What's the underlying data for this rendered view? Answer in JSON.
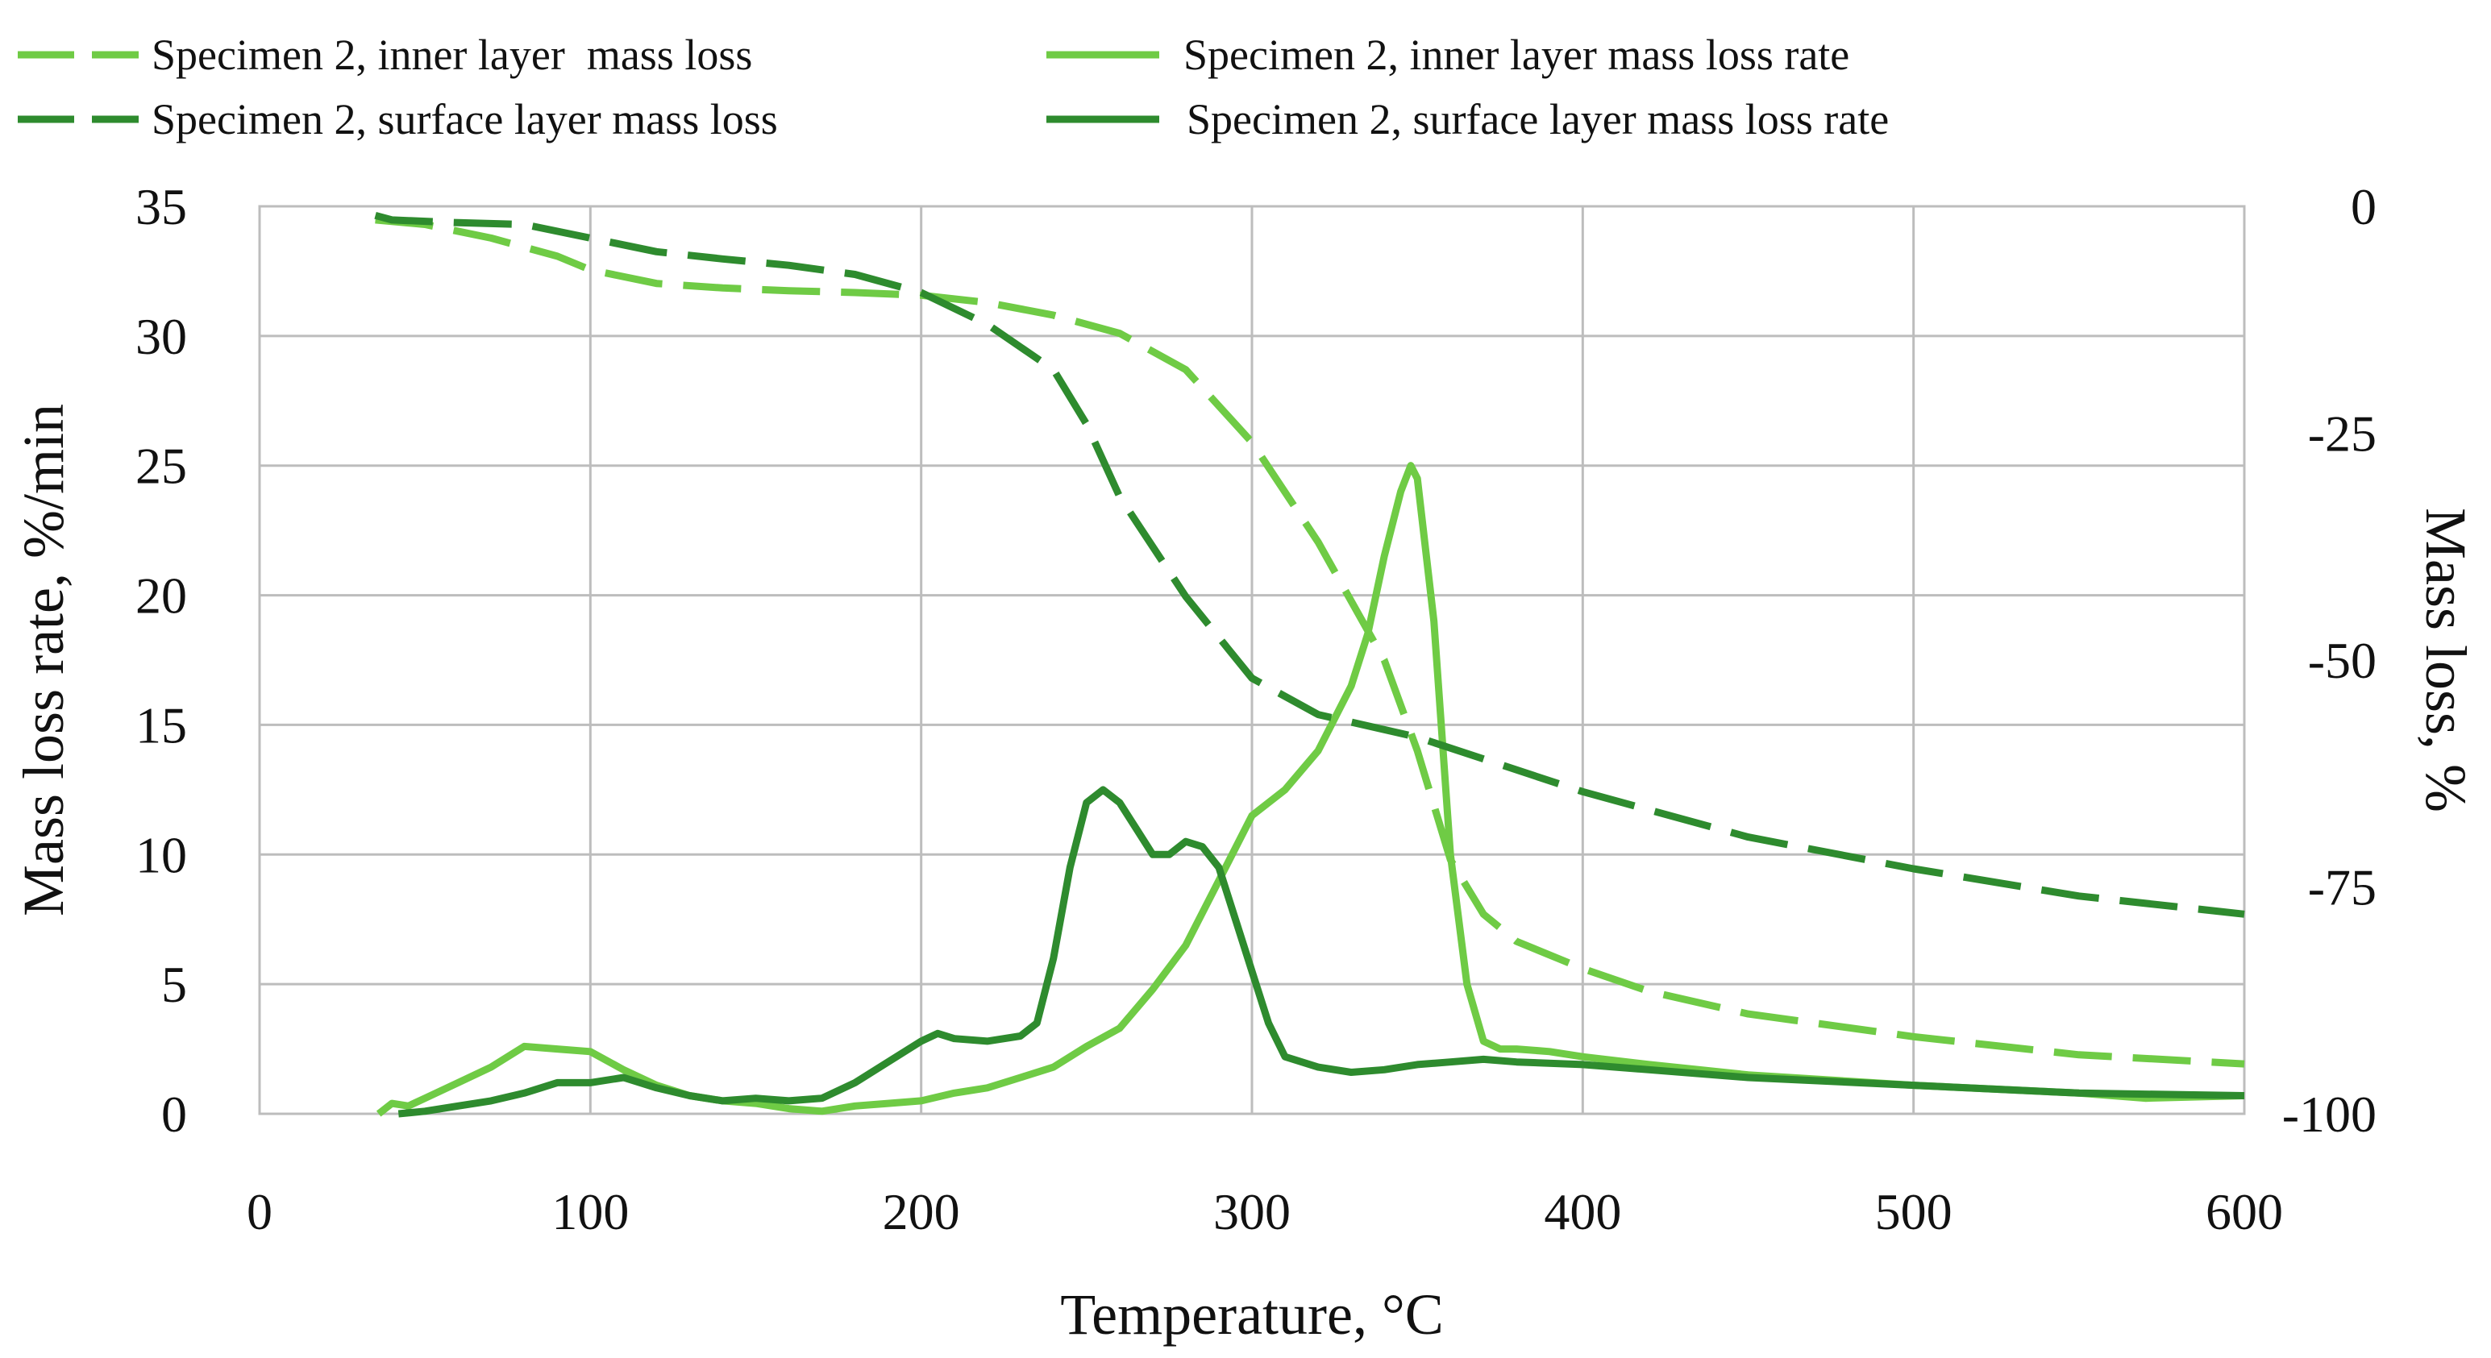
{
  "chart_data": {
    "type": "line",
    "title": "",
    "xlabel": "Temperature, °C",
    "ylabel_left": "Mass loss rate, %/min",
    "ylabel_right": "Mass loss, %",
    "xlim": [
      0,
      600
    ],
    "ylim_left": [
      0,
      35
    ],
    "ylim_right": [
      -100,
      0
    ],
    "x_ticks": [
      0,
      100,
      200,
      300,
      400,
      500,
      600
    ],
    "y_ticks_left": [
      0,
      5,
      10,
      15,
      20,
      25,
      30,
      35
    ],
    "y_ticks_right": [
      0,
      -25,
      -50,
      -75,
      -100
    ],
    "grid": true,
    "legend_position": "top",
    "colors": {
      "inner": "#6fcb45",
      "surface": "#2e8b2e"
    },
    "series": [
      {
        "name": "Specimen 2, inner layer  mass loss",
        "axis": "right",
        "style": "dashed",
        "color": "#6fcb45",
        "x": [
          35,
          50,
          70,
          90,
          100,
          120,
          140,
          160,
          180,
          200,
          220,
          240,
          260,
          280,
          300,
          320,
          340,
          350,
          360,
          370,
          380,
          400,
          420,
          450,
          500,
          550,
          600
        ],
        "y": [
          -1.5,
          -2,
          -3.5,
          -5.5,
          -7,
          -8.5,
          -9,
          -9.3,
          -9.5,
          -9.8,
          -10.6,
          -12,
          -14,
          -18,
          -26,
          -37,
          -50,
          -60,
          -72,
          -78,
          -81,
          -84,
          -86.5,
          -89,
          -91.5,
          -93.5,
          -94.5
        ]
      },
      {
        "name": "Specimen 2, inner layer mass loss rate",
        "axis": "left",
        "style": "solid",
        "color": "#6fcb45",
        "x": [
          36,
          40,
          45,
          50,
          60,
          70,
          80,
          90,
          100,
          110,
          120,
          130,
          140,
          150,
          160,
          170,
          180,
          190,
          200,
          210,
          220,
          230,
          240,
          250,
          260,
          270,
          280,
          290,
          300,
          310,
          320,
          330,
          335,
          340,
          345,
          348,
          350,
          355,
          360,
          365,
          370,
          375,
          380,
          390,
          400,
          420,
          450,
          500,
          550,
          570,
          600
        ],
        "y": [
          0,
          0.4,
          0.3,
          0.6,
          1.2,
          1.8,
          2.6,
          2.5,
          2.4,
          1.7,
          1.1,
          0.7,
          0.5,
          0.4,
          0.2,
          0.1,
          0.3,
          0.4,
          0.5,
          0.8,
          1.0,
          1.4,
          1.8,
          2.6,
          3.3,
          4.8,
          6.5,
          9.0,
          11.5,
          12.5,
          14.0,
          16.5,
          18.5,
          21.5,
          24.0,
          25.0,
          24.5,
          19.0,
          10.0,
          5.0,
          2.8,
          2.5,
          2.5,
          2.4,
          2.2,
          1.9,
          1.5,
          1.1,
          0.8,
          0.6,
          0.7
        ]
      },
      {
        "name": "Specimen 2, surface layer mass loss",
        "axis": "right",
        "style": "dashed",
        "color": "#2e8b2e",
        "x": [
          35,
          40,
          60,
          80,
          100,
          120,
          140,
          160,
          180,
          200,
          220,
          240,
          250,
          260,
          280,
          300,
          320,
          350,
          400,
          450,
          500,
          550,
          600
        ],
        "y": [
          -1,
          -1.5,
          -1.8,
          -2,
          -3.5,
          -5,
          -5.8,
          -6.5,
          -7.5,
          -9.5,
          -13,
          -18,
          -24,
          -32,
          -43,
          -52,
          -56,
          -58.5,
          -64.5,
          -69.5,
          -73,
          -76,
          -78
        ]
      },
      {
        "name": "Specimen 2, surface layer mass loss rate",
        "axis": "left",
        "style": "solid",
        "color": "#2e8b2e",
        "x": [
          42,
          50,
          60,
          70,
          80,
          90,
          100,
          110,
          120,
          130,
          140,
          150,
          160,
          170,
          180,
          190,
          200,
          205,
          210,
          220,
          230,
          235,
          240,
          245,
          250,
          255,
          260,
          265,
          270,
          275,
          280,
          285,
          290,
          295,
          300,
          305,
          310,
          320,
          330,
          340,
          350,
          360,
          370,
          380,
          400,
          420,
          450,
          500,
          550,
          600
        ],
        "y": [
          0,
          0.1,
          0.3,
          0.5,
          0.8,
          1.2,
          1.2,
          1.4,
          1.0,
          0.7,
          0.5,
          0.6,
          0.5,
          0.6,
          1.2,
          2.0,
          2.8,
          3.1,
          2.9,
          2.8,
          3.0,
          3.5,
          6.0,
          9.5,
          12.0,
          12.5,
          12.0,
          11.0,
          10.0,
          10.0,
          10.5,
          10.3,
          9.5,
          7.5,
          5.5,
          3.5,
          2.2,
          1.8,
          1.6,
          1.7,
          1.9,
          2.0,
          2.1,
          2.0,
          1.9,
          1.7,
          1.4,
          1.1,
          0.8,
          0.7
        ]
      }
    ]
  }
}
